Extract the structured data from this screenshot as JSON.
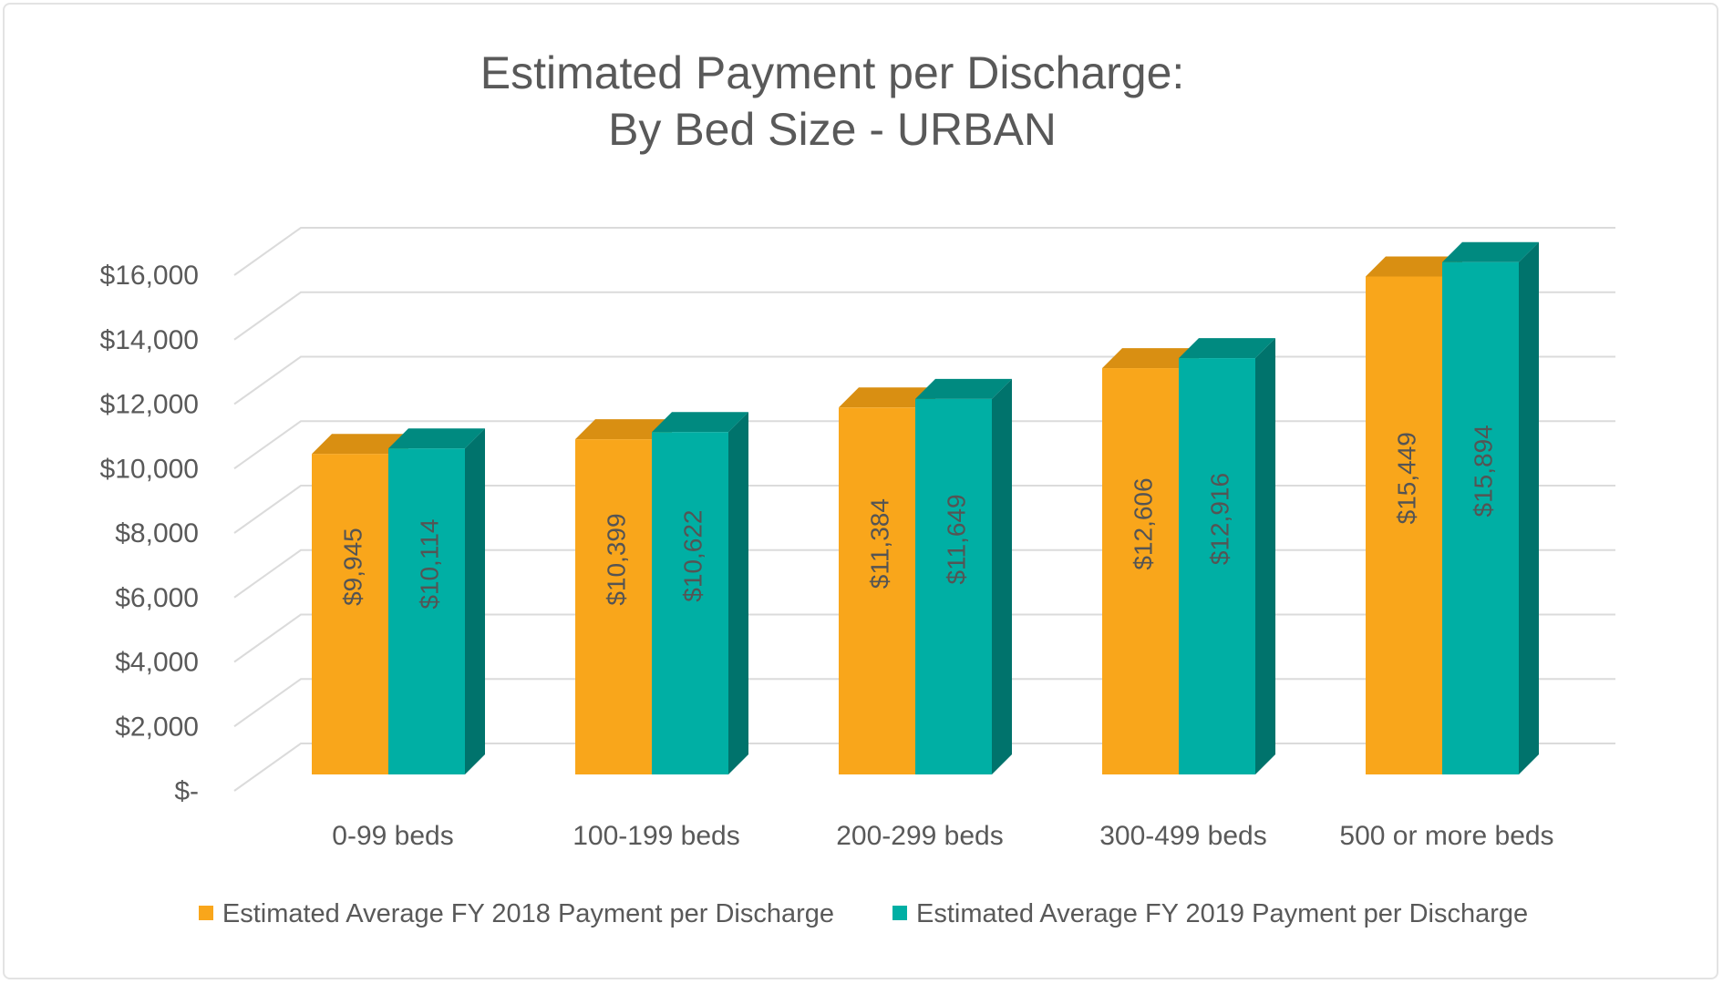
{
  "header": {
    "title_line1": "Estimated Payment per Discharge:",
    "title_line2": "By Bed Size - URBAN"
  },
  "chart_data": {
    "type": "bar",
    "style": "3d-clustered-column",
    "title": "Estimated Payment per Discharge: By Bed Size - URBAN",
    "categories": [
      "0-99 beds",
      "100-199 beds",
      "200-299 beds",
      "300-499 beds",
      "500 or more beds"
    ],
    "series": [
      {
        "name": "Estimated Average FY 2018 Payment per Discharge",
        "colors": {
          "front": "#F9A61B",
          "top": "#D98F12",
          "side": "#C27E0E"
        },
        "values": [
          9945,
          10399,
          11384,
          12606,
          15449
        ],
        "data_labels": [
          "$9,945",
          "$10,399",
          "$11,384",
          "$12,606",
          "$15,449"
        ]
      },
      {
        "name": "Estimated Average FY 2019 Payment per Discharge",
        "colors": {
          "front": "#00AFA4",
          "top": "#008A80",
          "side": "#00736C"
        },
        "values": [
          10114,
          10622,
          11649,
          12916,
          15894
        ],
        "data_labels": [
          "$10,114",
          "$10,622",
          "$11,649",
          "$12,916",
          "$15,894"
        ]
      }
    ],
    "y_axis": {
      "min": 0,
      "max": 16000,
      "step": 2000,
      "tick_labels": [
        "$-",
        "$2,000",
        "$4,000",
        "$6,000",
        "$8,000",
        "$10,000",
        "$12,000",
        "$14,000",
        "$16,000"
      ]
    },
    "grid": true,
    "legend_position": "bottom",
    "text_color": "#595959",
    "label_color": "#545454",
    "gridline_color": "#DBDBDB"
  }
}
